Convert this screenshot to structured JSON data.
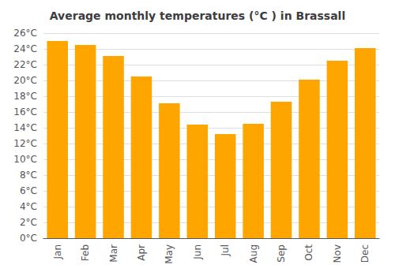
{
  "chart_data": {
    "type": "bar",
    "title": "Average monthly temperatures (°C ) in Brassall",
    "categories": [
      "Jan",
      "Feb",
      "Mar",
      "Apr",
      "May",
      "Jun",
      "Jul",
      "Aug",
      "Sep",
      "Oct",
      "Nov",
      "Dec"
    ],
    "values": [
      25.0,
      24.5,
      23.1,
      20.5,
      17.1,
      14.4,
      13.2,
      14.5,
      17.3,
      20.1,
      22.5,
      24.1
    ],
    "color": "#FFA500",
    "ylim": [
      0,
      26
    ],
    "yticks": [
      {
        "value": 0,
        "label": "0°C"
      },
      {
        "value": 2,
        "label": "2°C"
      },
      {
        "value": 4,
        "label": "4°C"
      },
      {
        "value": 6,
        "label": "6°C"
      },
      {
        "value": 8,
        "label": "8°C"
      },
      {
        "value": 10,
        "label": "10°C"
      },
      {
        "value": 12,
        "label": "12°C"
      },
      {
        "value": 14,
        "label": "14°C"
      },
      {
        "value": 16,
        "label": "16°C"
      },
      {
        "value": 18,
        "label": "18°C"
      },
      {
        "value": 20,
        "label": "20°C"
      },
      {
        "value": 22,
        "label": "22°C"
      },
      {
        "value": 24,
        "label": "24°C"
      },
      {
        "value": 26,
        "label": "26°C"
      }
    ],
    "grid": true
  }
}
